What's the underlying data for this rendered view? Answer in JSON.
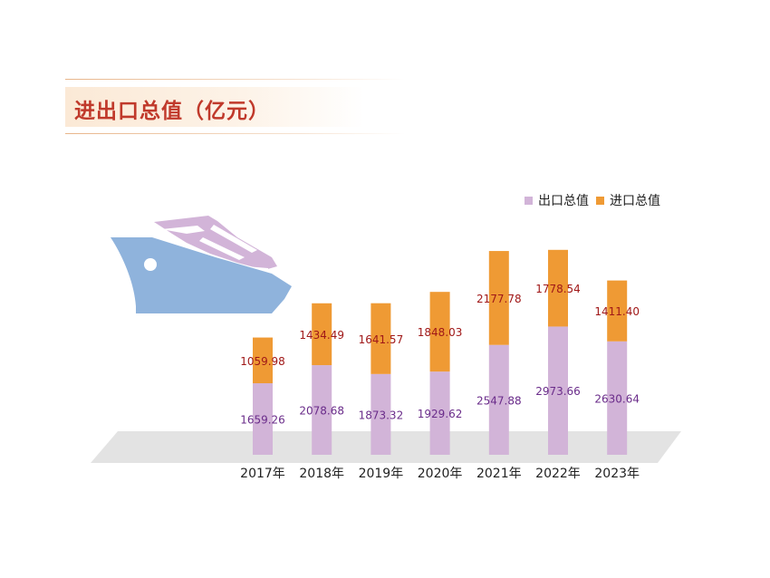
{
  "title": "进出口总值（亿元）",
  "legend": {
    "export_label": "出口总值",
    "import_label": "进口总值"
  },
  "colors": {
    "export": "#d2b4d8",
    "import": "#ef9a34",
    "export_label": "#6a2c8a",
    "import_label": "#a01818",
    "title": "#c0392b",
    "ship_hull": "#8fb3dc",
    "ship_deck": "#d2b4d8",
    "floor": "#e3e3e3"
  },
  "icons": {
    "decoration": "cruise-ship-icon"
  },
  "chart_data": {
    "type": "bar",
    "stacked": true,
    "title": "进出口总值（亿元）",
    "categories": [
      "2017年",
      "2018年",
      "2019年",
      "2020年",
      "2021年",
      "2022年",
      "2023年"
    ],
    "series": [
      {
        "name": "出口总值",
        "values": [
          1659.26,
          2078.68,
          1873.32,
          1929.62,
          2547.88,
          2973.66,
          2630.64
        ]
      },
      {
        "name": "进口总值",
        "values": [
          1059.98,
          1434.49,
          1641.57,
          1848.03,
          2177.78,
          1778.54,
          1411.4
        ]
      }
    ],
    "value_labels": {
      "出口总值": [
        "1659.26",
        "2078.68",
        "1873.32",
        "1929.62",
        "2547.88",
        "2973.66",
        "2630.64"
      ],
      "进口总值": [
        "1059.98",
        "1434.49",
        "1641.57",
        "1848.03",
        "2177.78",
        "1778.54",
        "1411.40"
      ]
    },
    "grid": false,
    "legend_position": "top-right"
  }
}
